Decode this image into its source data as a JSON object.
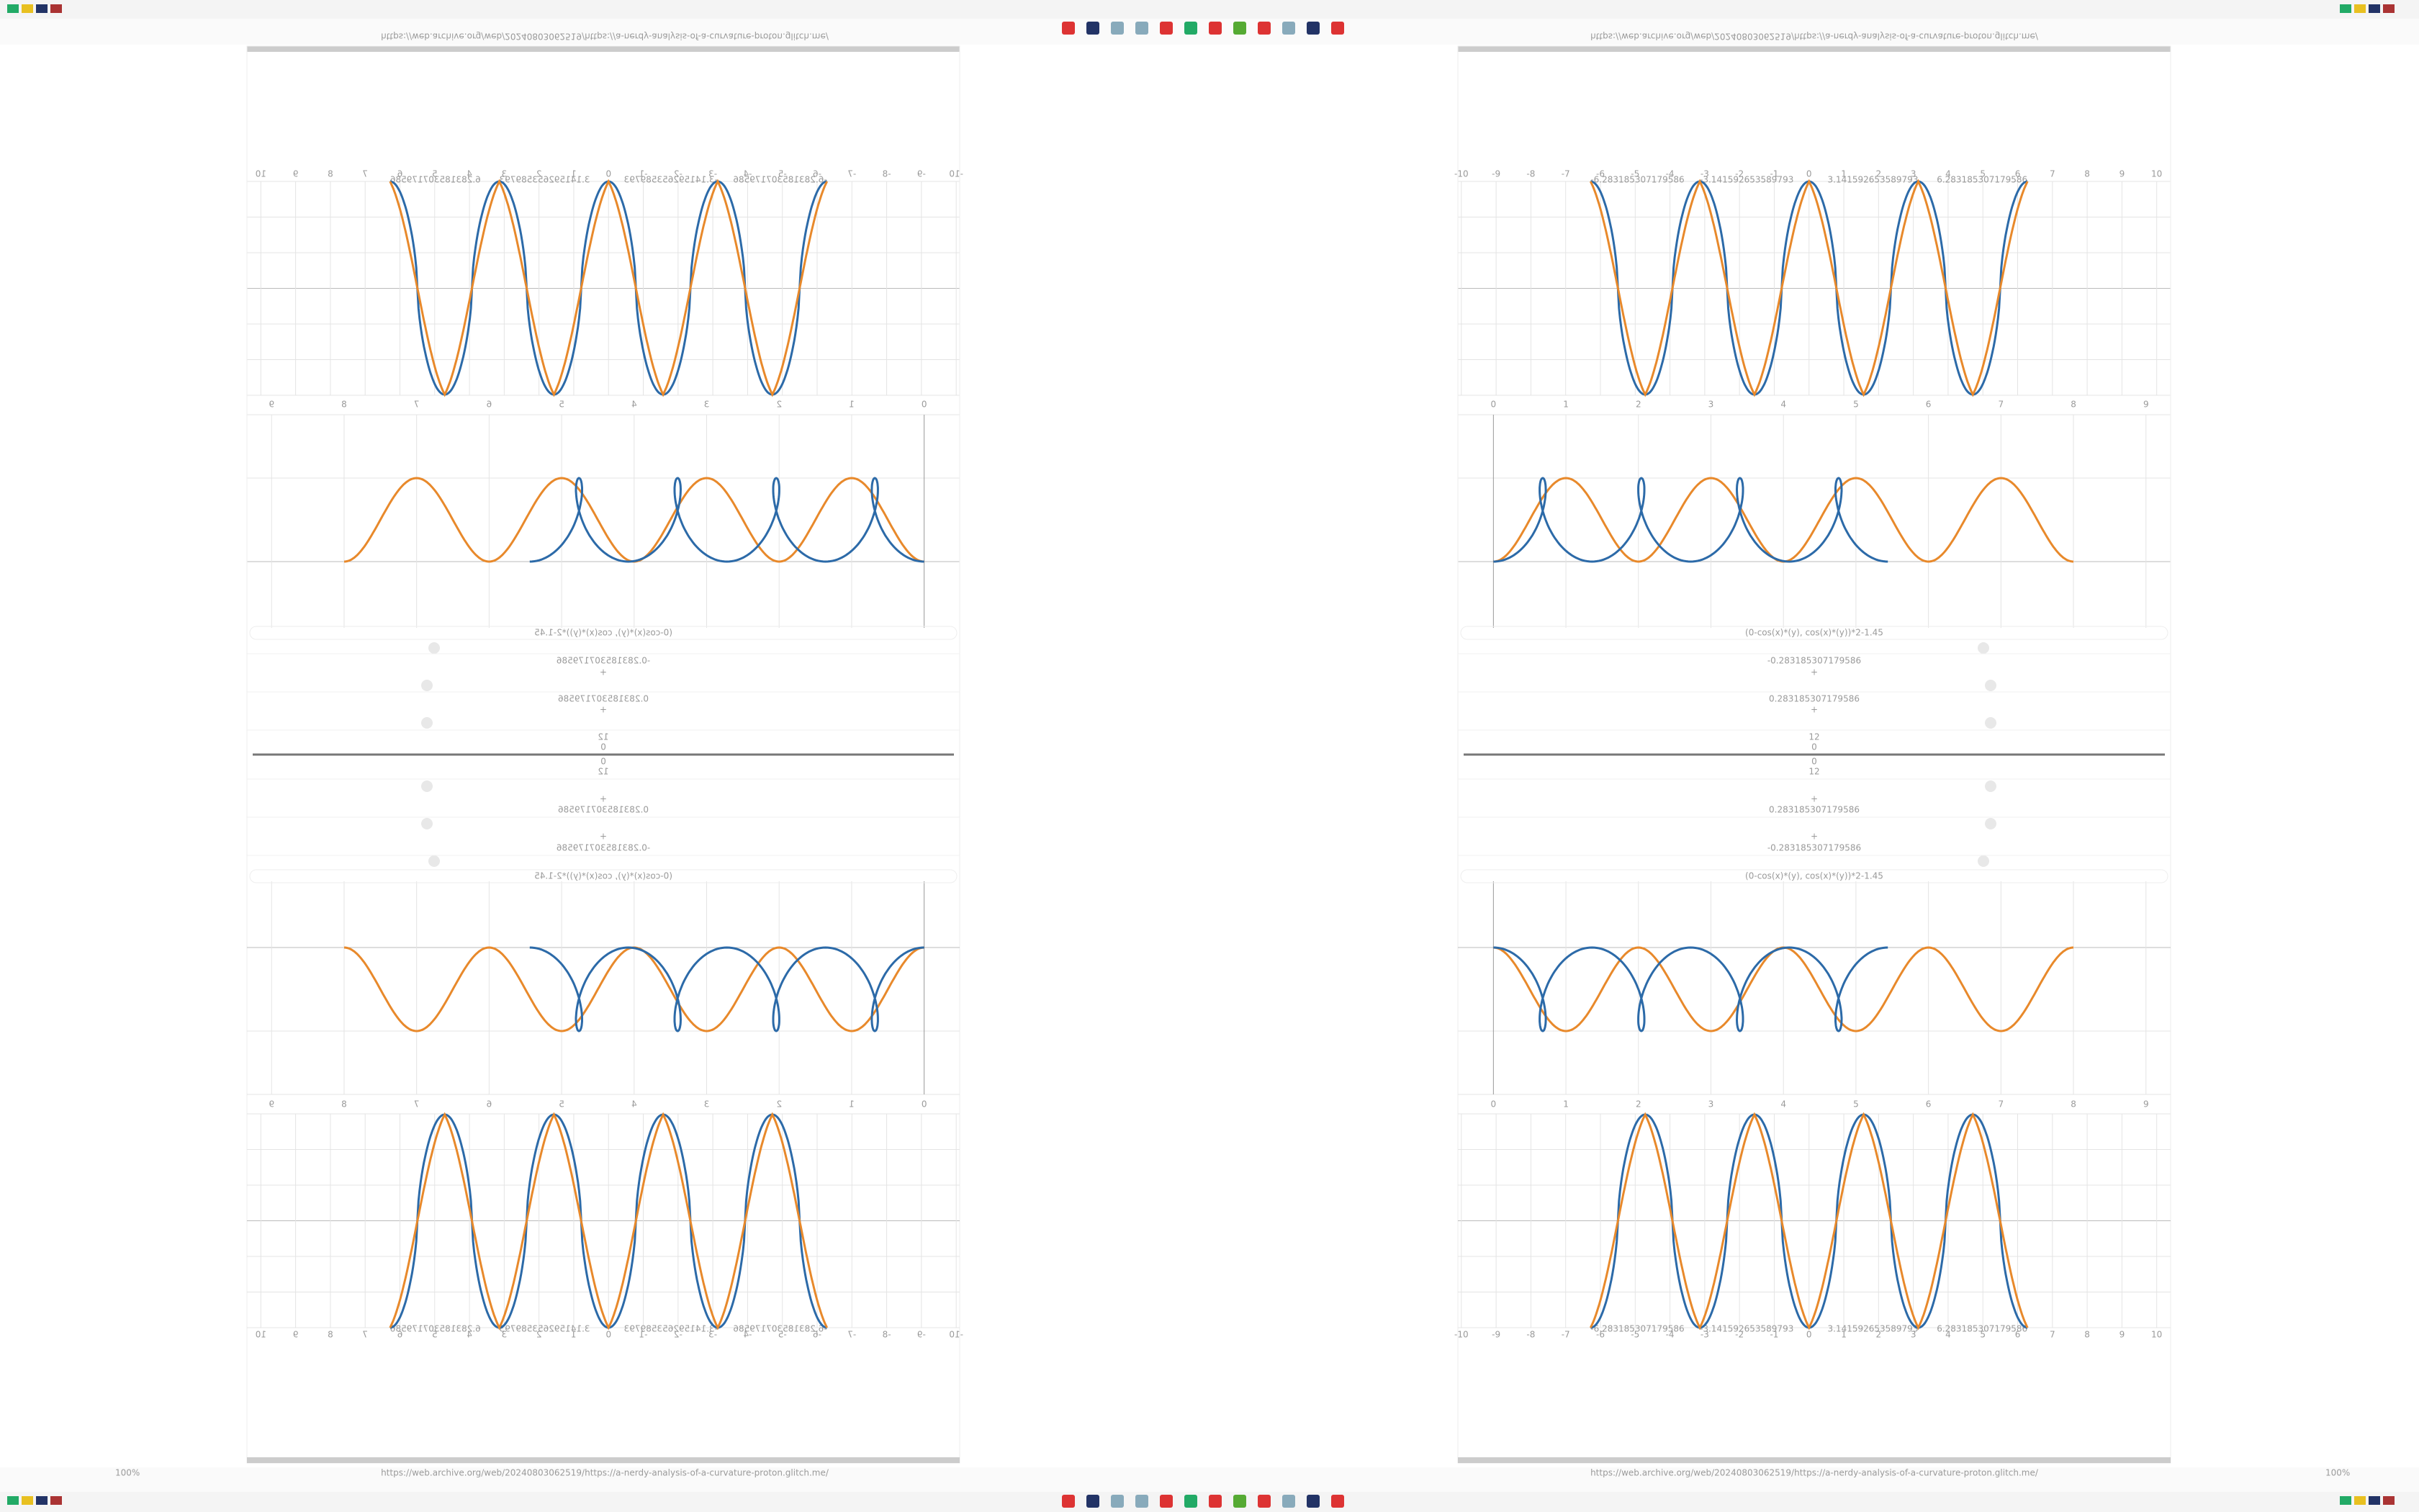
{
  "browser": {
    "url": "https://web.archive.org/web/20240803062519/https://a-nerdy-analysis-of-a-curvature-proton.glitch.me/",
    "zoom": "100%"
  },
  "panel": {
    "formula": "(0-cos(x)*(y), cos(x)*(y))*2-1.45",
    "plot1": {
      "xlim": [
        -10.1,
        10.4
      ],
      "xticks": [
        -10,
        -9,
        -8,
        -7,
        -6,
        -5,
        -4,
        -3,
        -2,
        -1,
        0,
        1,
        2,
        3,
        4,
        5,
        6,
        7,
        8,
        9,
        10
      ],
      "labels": [
        -6.283185307179586,
        -3.141592653589793,
        3.141592653589793,
        6.283185307179586
      ]
    },
    "plot2": {
      "xlim": [
        -0.49,
        9.34
      ],
      "xticks": [
        0,
        1,
        2,
        3,
        4,
        5,
        6,
        7,
        8,
        9
      ]
    },
    "sliders": [
      -0.283185307179586,
      0.283185307179586,
      12
    ],
    "center": 0,
    "step": "+"
  }
}
